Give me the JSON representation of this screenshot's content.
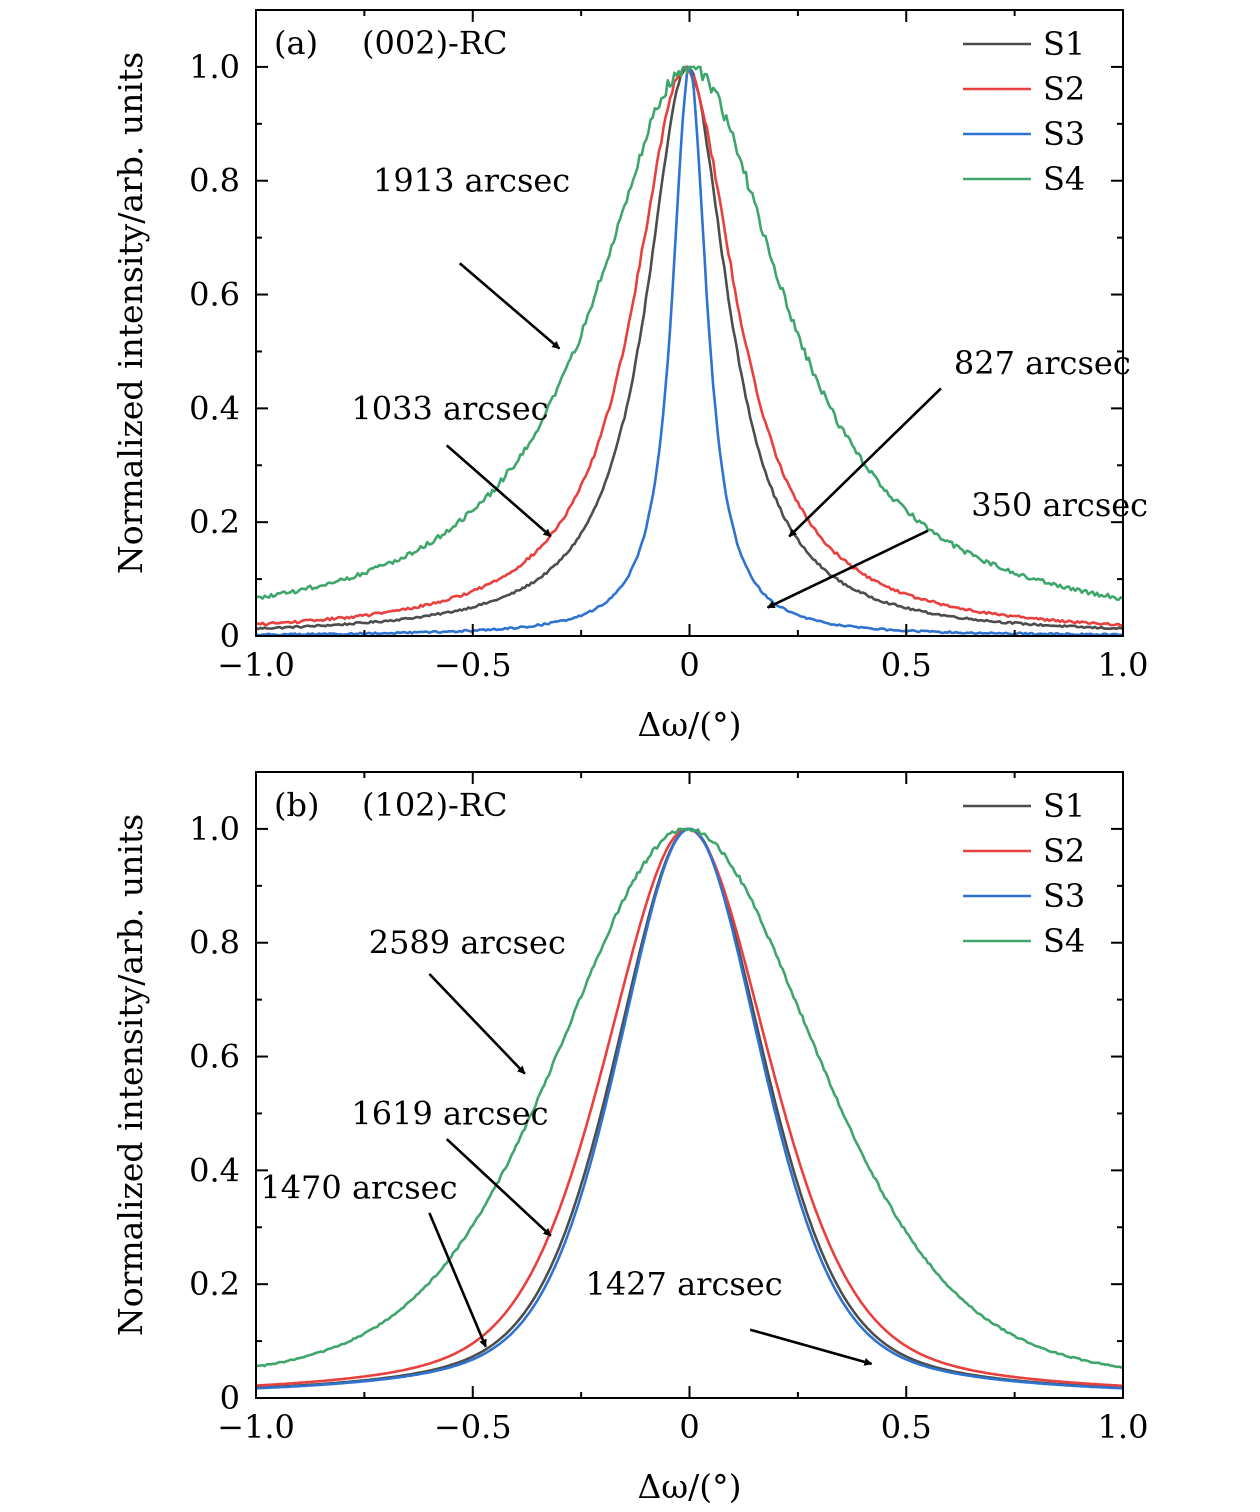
{
  "chart_data": [
    {
      "type": "line",
      "panel_label": "(a)",
      "title": "(002)-RC",
      "xlabel": "Δω/(°)",
      "ylabel": "Normalized intensity/arb. units",
      "xlim": [
        -1.0,
        1.0
      ],
      "ylim": [
        0,
        1.1
      ],
      "xticks": [
        -1.0,
        -0.5,
        0,
        0.5,
        1.0
      ],
      "xtick_labels": [
        "−1.0",
        "−0.5",
        "0",
        "0.5",
        "1.0"
      ],
      "yticks": [
        0,
        0.2,
        0.4,
        0.6,
        0.8,
        1.0
      ],
      "ytick_labels": [
        "0",
        "0.2",
        "0.4",
        "0.6",
        "0.8",
        "1.0"
      ],
      "grid": false,
      "legend_position": "top-right",
      "series": [
        {
          "name": "S1",
          "color": "#4d4d4d",
          "fwhm_arcsec": 827,
          "shape": "lorentzian",
          "center": -0.005,
          "noise": 0.004
        },
        {
          "name": "S2",
          "color": "#e8403e",
          "fwhm_arcsec": 1033,
          "shape": "lorentzian",
          "center": -0.01,
          "noise": 0.005
        },
        {
          "name": "S3",
          "color": "#2f73d1",
          "fwhm_arcsec": 350,
          "shape": "lorentzian",
          "center": 0.0,
          "noise": 0.004
        },
        {
          "name": "S4",
          "color": "#3fa66b",
          "fwhm_arcsec": 1913,
          "shape": "lorentzian",
          "center": 0.0,
          "noise": 0.008
        }
      ],
      "annotations": [
        {
          "text": "1913 arcsec",
          "text_at": [
            -0.73,
            0.8
          ],
          "arrow_from": [
            -0.53,
            0.655
          ],
          "arrow_to": [
            -0.3,
            0.505
          ]
        },
        {
          "text": "1033 arcsec",
          "text_at": [
            -0.78,
            0.4
          ],
          "arrow_from": [
            -0.56,
            0.335
          ],
          "arrow_to": [
            -0.32,
            0.175
          ]
        },
        {
          "text": "827 arcsec",
          "text_at": [
            0.61,
            0.48
          ],
          "arrow_from": [
            0.58,
            0.435
          ],
          "arrow_to": [
            0.23,
            0.175
          ]
        },
        {
          "text": "350 arcsec",
          "text_at": [
            0.65,
            0.23
          ],
          "arrow_from": [
            0.55,
            0.185
          ],
          "arrow_to": [
            0.18,
            0.05
          ]
        }
      ]
    },
    {
      "type": "line",
      "panel_label": "(b)",
      "title": "(102)-RC",
      "xlabel": "Δω/(°)",
      "ylabel": "Normalized intensity/arb. units",
      "xlim": [
        -1.0,
        1.0
      ],
      "ylim": [
        0,
        1.1
      ],
      "xticks": [
        -1.0,
        -0.5,
        0,
        0.5,
        1.0
      ],
      "xtick_labels": [
        "−1.0",
        "−0.5",
        "0",
        "0.5",
        "1.0"
      ],
      "yticks": [
        0,
        0.2,
        0.4,
        0.6,
        0.8,
        1.0
      ],
      "ytick_labels": [
        "0",
        "0.2",
        "0.4",
        "0.6",
        "0.8",
        "1.0"
      ],
      "grid": false,
      "legend_position": "top-right",
      "series": [
        {
          "name": "S1",
          "color": "#4d4d4d",
          "fwhm_arcsec": 1470,
          "shape": "pseudo-voigt",
          "center": 0.0,
          "noise": 0.0
        },
        {
          "name": "S2",
          "color": "#e8403e",
          "fwhm_arcsec": 1619,
          "shape": "pseudo-voigt",
          "center": -0.005,
          "noise": 0.0
        },
        {
          "name": "S3",
          "color": "#2f73d1",
          "fwhm_arcsec": 1427,
          "shape": "pseudo-voigt",
          "center": 0.0,
          "noise": 0.0
        },
        {
          "name": "S4",
          "color": "#3fa66b",
          "fwhm_arcsec": 2589,
          "shape": "pseudo-voigt",
          "center": -0.005,
          "noise": 0.003
        }
      ],
      "annotations": [
        {
          "text": "2589 arcsec",
          "text_at": [
            -0.74,
            0.8
          ],
          "arrow_from": [
            -0.6,
            0.745
          ],
          "arrow_to": [
            -0.38,
            0.57
          ]
        },
        {
          "text": "1619 arcsec",
          "text_at": [
            -0.78,
            0.5
          ],
          "arrow_from": [
            -0.56,
            0.455
          ],
          "arrow_to": [
            -0.32,
            0.285
          ]
        },
        {
          "text": "1470 arcsec",
          "text_at": [
            -0.99,
            0.37
          ],
          "arrow_from": [
            -0.6,
            0.325
          ],
          "arrow_to": [
            -0.47,
            0.09
          ]
        },
        {
          "text": "1427 arcsec",
          "text_at": [
            -0.24,
            0.2
          ],
          "arrow_from": [
            0.14,
            0.12
          ],
          "arrow_to": [
            0.42,
            0.06
          ]
        }
      ]
    }
  ]
}
